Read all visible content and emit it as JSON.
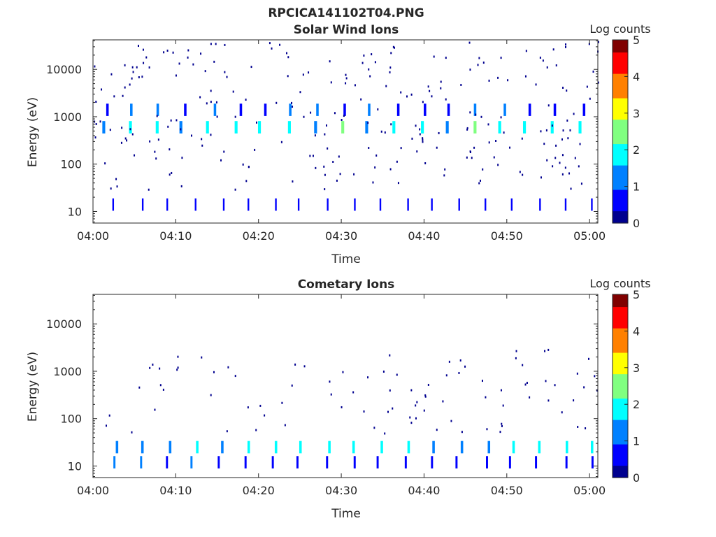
{
  "figure_title": "RPCICA141102T04.PNG",
  "colormap": [
    "#00008f",
    "#0000ff",
    "#0080ff",
    "#00ffff",
    "#80ff80",
    "#ffff00",
    "#ff8000",
    "#ff0000",
    "#800000"
  ],
  "chart_data": [
    {
      "type": "heatmap",
      "title": "Solar Wind Ions",
      "xlabel": "Time",
      "ylabel": "Energy (eV)",
      "y_scale": "log",
      "xlim_minutes": [
        0,
        61
      ],
      "ylim": [
        5.7,
        42000
      ],
      "x_ticks": [
        "04:00",
        "04:10",
        "04:20",
        "04:30",
        "04:40",
        "04:50",
        "05:00"
      ],
      "y_ticks": [
        "10",
        "100",
        "1000",
        "10000"
      ],
      "colorbar": {
        "label": "Log counts",
        "min": 0,
        "max": 5,
        "ticks": [
          "0",
          "1",
          "2",
          "3",
          "4",
          "5"
        ]
      },
      "bands": [
        {
          "energy": 600,
          "value": 1.8,
          "period_min": 3.2,
          "phase_min": 1.0,
          "width_min": 0.35
        },
        {
          "energy": 1400,
          "value": 0.9,
          "period_min": 3.2,
          "phase_min": 1.5,
          "width_min": 0.3
        },
        {
          "energy": 14,
          "value": 0.5,
          "period_min": 3.2,
          "phase_min": 2.6,
          "width_min": 0.2
        }
      ],
      "sparse_dots": {
        "count": 260,
        "energy_range": [
          30,
          40000
        ],
        "value": 0.3
      }
    },
    {
      "type": "heatmap",
      "title": "Cometary Ions",
      "xlabel": "Time",
      "ylabel": "Energy (eV)",
      "y_scale": "log",
      "xlim_minutes": [
        0,
        61
      ],
      "ylim": [
        5.7,
        42000
      ],
      "x_ticks": [
        "04:00",
        "04:10",
        "04:20",
        "04:30",
        "04:40",
        "04:50",
        "05:00"
      ],
      "y_ticks": [
        "10",
        "100",
        "1000",
        "10000"
      ],
      "colorbar": {
        "label": "Log counts",
        "min": 0,
        "max": 5,
        "ticks": [
          "0",
          "1",
          "2",
          "3",
          "4",
          "5"
        ]
      },
      "bands": [
        {
          "energy": 25,
          "value": 1.6,
          "period_min": 3.2,
          "phase_min": 2.6,
          "width_min": 0.3
        },
        {
          "energy": 12,
          "value": 0.8,
          "period_min": 3.2,
          "phase_min": 2.4,
          "width_min": 0.25
        }
      ],
      "sparse_dots": {
        "count": 90,
        "energy_range": [
          50,
          3000
        ],
        "value": 0.3
      }
    }
  ]
}
